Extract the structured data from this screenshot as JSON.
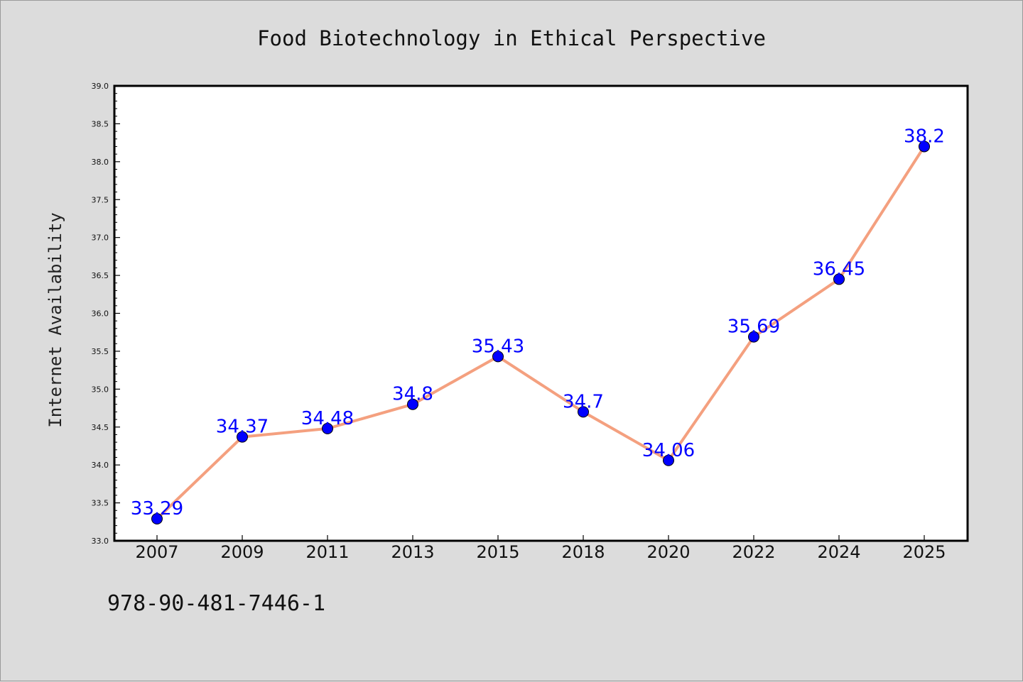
{
  "chart_data": {
    "type": "line",
    "title": "Food Biotechnology in Ethical Perspective",
    "xlabel": "",
    "ylabel": "Internet Availability",
    "categories": [
      "2007",
      "2009",
      "2011",
      "2013",
      "2015",
      "2018",
      "2020",
      "2022",
      "2024",
      "2025"
    ],
    "values": [
      33.29,
      34.37,
      34.48,
      34.8,
      35.43,
      34.7,
      34.06,
      35.69,
      36.45,
      38.2
    ],
    "data_labels": [
      "33.29",
      "34.37",
      "34.48",
      "34.8",
      "35.43",
      "34.7",
      "34.06",
      "35.69",
      "36.45",
      "38.2"
    ],
    "ylim": [
      33.0,
      39.0
    ],
    "yticks": [
      "33.0",
      "33.5",
      "34.0",
      "34.5",
      "35.0",
      "35.5",
      "36.0",
      "36.5",
      "37.0",
      "37.5",
      "38.0",
      "38.5",
      "39.0"
    ],
    "grid": false,
    "line_color": "#f4a07f",
    "marker_color": "#0000ff",
    "label_color": "#0000ff"
  },
  "footnote": "978-90-481-7446-1"
}
